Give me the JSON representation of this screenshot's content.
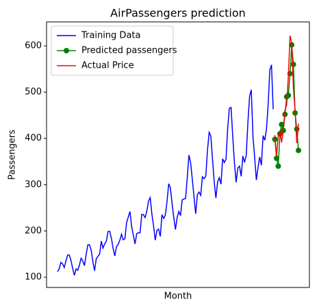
{
  "chart_data": {
    "type": "line",
    "title": "AirPassengers prediction",
    "x_label": "Month",
    "y_label": "Passengers",
    "categories": [
      null,
      null,
      null,
      null,
      null,
      null,
      null,
      null,
      null,
      null,
      null,
      null,
      null,
      null,
      null,
      null,
      null,
      null,
      null,
      null,
      null,
      null,
      null,
      null,
      null,
      null,
      null,
      null,
      null,
      null,
      null,
      null,
      null,
      null,
      null,
      null,
      null,
      null,
      null,
      null,
      null,
      null,
      null,
      null,
      null,
      null,
      null,
      null,
      null,
      null,
      null,
      null,
      null,
      null,
      null,
      null,
      null,
      null,
      null,
      null,
      null,
      null,
      null,
      null,
      null,
      null,
      null,
      null,
      null,
      null,
      null,
      null,
      null,
      null,
      null,
      null,
      null,
      null,
      null,
      null,
      null,
      null,
      null,
      null,
      null,
      null,
      null,
      null,
      null,
      null,
      null,
      null,
      null,
      null,
      null,
      null,
      null,
      null,
      null,
      null,
      null,
      null,
      null,
      null,
      null,
      null,
      null,
      null,
      null,
      null,
      null,
      null,
      null,
      null,
      null,
      null,
      null,
      null,
      null,
      null,
      null,
      null,
      null,
      null,
      null,
      null,
      null,
      null,
      null,
      null,
      null,
      null,
      null,
      null,
      null,
      null,
      null,
      null,
      null,
      null,
      null,
      null,
      null,
      null
    ],
    "ylim": [
      77.8,
      651.8
    ],
    "yticks": [
      100,
      200,
      300,
      400,
      500,
      600
    ],
    "legend": "upper left",
    "series": [
      {
        "name": "Training Data",
        "color": "#0000ff",
        "marker": false,
        "values": [
          112,
          118,
          132,
          129,
          121,
          135,
          148,
          148,
          136,
          119,
          104,
          118,
          115,
          126,
          141,
          135,
          125,
          149,
          170,
          170,
          158,
          133,
          114,
          140,
          145,
          150,
          178,
          163,
          172,
          178,
          199,
          199,
          184,
          162,
          146,
          166,
          171,
          180,
          193,
          181,
          183,
          218,
          230,
          242,
          209,
          191,
          172,
          194,
          196,
          196,
          236,
          235,
          229,
          243,
          264,
          272,
          237,
          211,
          180,
          201,
          204,
          188,
          235,
          227,
          234,
          264,
          302,
          293,
          259,
          229,
          203,
          229,
          242,
          233,
          267,
          269,
          270,
          315,
          364,
          347,
          312,
          274,
          237,
          278,
          284,
          277,
          317,
          313,
          318,
          374,
          413,
          405,
          355,
          306,
          271,
          306,
          315,
          301,
          356,
          348,
          355,
          422,
          465,
          467,
          404,
          347,
          305,
          336,
          340,
          318,
          362,
          348,
          363,
          435,
          491,
          505,
          404,
          359,
          310,
          337,
          360,
          342,
          406,
          396,
          420,
          472,
          548,
          559,
          463,
          null,
          null,
          null,
          null,
          null,
          null,
          null,
          null,
          null,
          null,
          null,
          null,
          null,
          null,
          null
        ]
      },
      {
        "name": "Predicted passengers",
        "color": "#008000",
        "marker": true,
        "values": [
          null,
          null,
          null,
          null,
          null,
          null,
          null,
          null,
          null,
          null,
          null,
          null,
          null,
          null,
          null,
          null,
          null,
          null,
          null,
          null,
          null,
          null,
          null,
          null,
          null,
          null,
          null,
          null,
          null,
          null,
          null,
          null,
          null,
          null,
          null,
          null,
          null,
          null,
          null,
          null,
          null,
          null,
          null,
          null,
          null,
          null,
          null,
          null,
          null,
          null,
          null,
          null,
          null,
          null,
          null,
          null,
          null,
          null,
          null,
          null,
          null,
          null,
          null,
          null,
          null,
          null,
          null,
          null,
          null,
          null,
          null,
          null,
          null,
          null,
          null,
          null,
          null,
          null,
          null,
          null,
          null,
          null,
          null,
          null,
          null,
          null,
          null,
          null,
          null,
          null,
          null,
          null,
          null,
          null,
          null,
          null,
          null,
          null,
          null,
          null,
          null,
          null,
          null,
          null,
          null,
          null,
          null,
          null,
          null,
          null,
          null,
          null,
          null,
          null,
          null,
          null,
          null,
          null,
          null,
          null,
          null,
          null,
          null,
          null,
          null,
          null,
          null,
          null,
          null,
          398,
          357,
          340,
          410,
          430,
          417,
          452,
          490,
          493,
          540,
          602,
          560,
          455,
          420,
          374
        ]
      },
      {
        "name": "Actual Price",
        "color": "#ff0000",
        "marker": false,
        "values": [
          null,
          null,
          null,
          null,
          null,
          null,
          null,
          null,
          null,
          null,
          null,
          null,
          null,
          null,
          null,
          null,
          null,
          null,
          null,
          null,
          null,
          null,
          null,
          null,
          null,
          null,
          null,
          null,
          null,
          null,
          null,
          null,
          null,
          null,
          null,
          null,
          null,
          null,
          null,
          null,
          null,
          null,
          null,
          null,
          null,
          null,
          null,
          null,
          null,
          null,
          null,
          null,
          null,
          null,
          null,
          null,
          null,
          null,
          null,
          null,
          null,
          null,
          null,
          null,
          null,
          null,
          null,
          null,
          null,
          null,
          null,
          null,
          null,
          null,
          null,
          null,
          null,
          null,
          null,
          null,
          null,
          null,
          null,
          null,
          null,
          null,
          null,
          null,
          null,
          null,
          null,
          null,
          null,
          null,
          null,
          null,
          null,
          null,
          null,
          null,
          null,
          null,
          null,
          null,
          null,
          null,
          null,
          null,
          null,
          null,
          null,
          null,
          null,
          null,
          null,
          null,
          null,
          null,
          null,
          null,
          null,
          null,
          null,
          null,
          null,
          null,
          null,
          null,
          null,
          407,
          362,
          405,
          417,
          391,
          419,
          461,
          472,
          535,
          622,
          606,
          508,
          461,
          390,
          432
        ]
      }
    ]
  }
}
